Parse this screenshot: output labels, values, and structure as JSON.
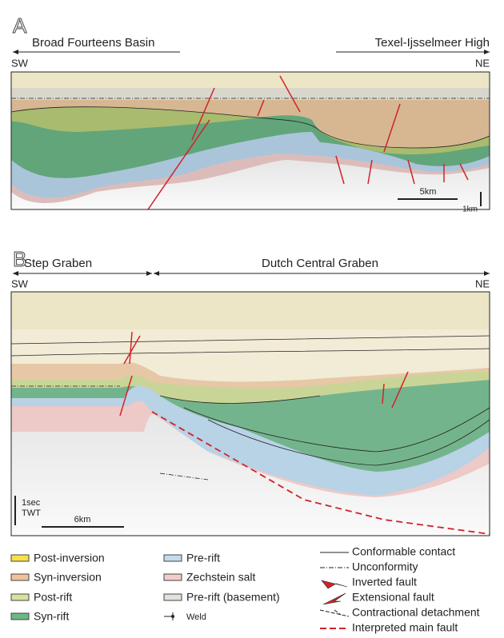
{
  "panel_a": {
    "label": "A",
    "left_title": "Broad Fourteens Basin",
    "right_title": "Texel-Ijsselmeer High",
    "left_direction": "SW",
    "right_direction": "NE",
    "vertical_scale": "1km",
    "horizontal_scale": "5km"
  },
  "panel_b": {
    "label": "B",
    "left_title": "Step Graben",
    "right_title": "Dutch Central Graben",
    "left_direction": "SW",
    "right_direction": "NE",
    "vertical_scale": [
      "1sec",
      "TWT"
    ],
    "horizontal_scale": "6km"
  },
  "legend": {
    "units": [
      "Post-inversion",
      "Syn-inversion",
      "Post-rift",
      "Syn-rift",
      "Pre-rift",
      "Zechstein salt",
      "Pre-rift (basement)",
      "Weld"
    ],
    "lines": [
      "Conformable contact",
      "Unconformity",
      "Inverted fault",
      "Extensional fault",
      "Contractional detachment",
      "Interpreted main fault"
    ]
  }
}
